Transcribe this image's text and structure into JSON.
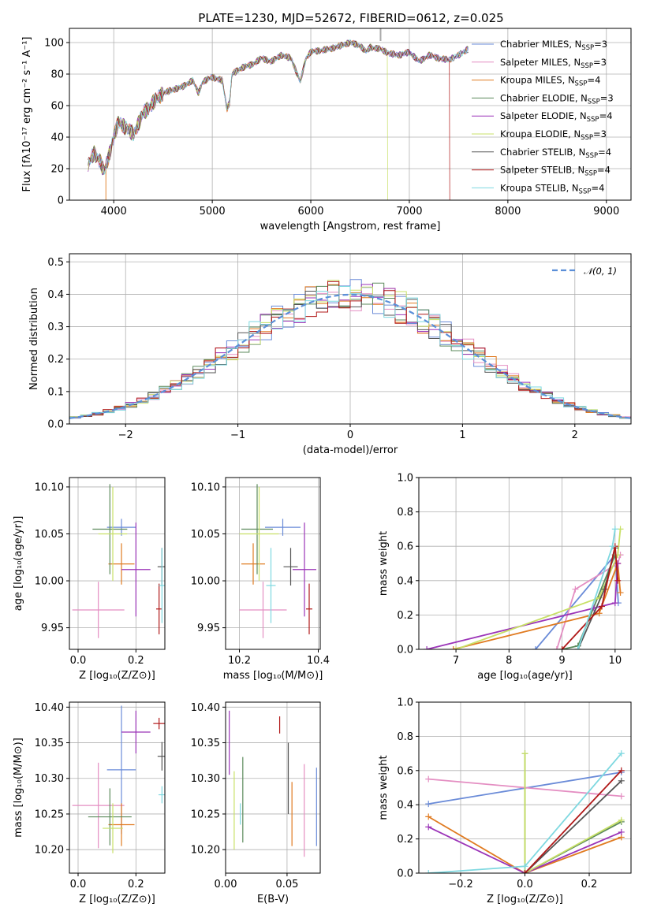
{
  "colors": [
    "#6a8bd8",
    "#e48ec2",
    "#e07b21",
    "#5b8a5b",
    "#9b34b8",
    "#c8e067",
    "#555555",
    "#b01818",
    "#7ed8e0"
  ],
  "chart_data": [
    {
      "id": "spectrum",
      "type": "line",
      "title": "PLATE=1230, MJD=52672, FIBERID=0612, z=0.025",
      "xlabel": "wavelength [Angstrom, rest frame]",
      "ylabel": "Flux [fλ10⁻¹⁷ erg cm⁻² s⁻¹ A⁻¹]",
      "xlim": [
        3550,
        9250
      ],
      "ylim": [
        0,
        109
      ],
      "xticks": [
        4000,
        5000,
        6000,
        7000,
        8000,
        9000
      ],
      "yticks": [
        0,
        20,
        40,
        60,
        80,
        100
      ],
      "spectrum_x": [
        3740,
        3800,
        3860,
        3900,
        3950,
        4000,
        4050,
        4100,
        4200,
        4300,
        4400,
        4500,
        4600,
        4700,
        4800,
        4860,
        4900,
        5000,
        5100,
        5150,
        5175,
        5200,
        5300,
        5400,
        5500,
        5600,
        5700,
        5800,
        5893,
        5950,
        6000,
        6100,
        6200,
        6300,
        6400,
        6500,
        6563,
        6600,
        6700,
        6800,
        6900,
        7000,
        7100,
        7200,
        7300,
        7400,
        7500,
        7600
      ],
      "spectrum_y": [
        22,
        30,
        25,
        18,
        28,
        40,
        50,
        47,
        42,
        55,
        62,
        68,
        70,
        72,
        76,
        68,
        75,
        78,
        76,
        58,
        62,
        80,
        84,
        86,
        90,
        88,
        92,
        90,
        75,
        90,
        94,
        95,
        96,
        98,
        100,
        98,
        94,
        97,
        96,
        93,
        92,
        94,
        88,
        92,
        90,
        89,
        92,
        96
      ],
      "dropouts": [
        {
          "series": 5,
          "x": 6780
        },
        {
          "series": 7,
          "x": 7410
        },
        {
          "series": 2,
          "x": 3920
        }
      ],
      "legend_position": "right",
      "series": [
        {
          "name": "Chabrier MILES, N",
          "sub": "SSP",
          "tail": "=3"
        },
        {
          "name": "Salpeter MILES, N",
          "sub": "SSP",
          "tail": "=3"
        },
        {
          "name": "Kroupa MILES, N",
          "sub": "SSP",
          "tail": "=4"
        },
        {
          "name": "Chabrier ELODIE, N",
          "sub": "SSP",
          "tail": "=3"
        },
        {
          "name": "Salpeter ELODIE, N",
          "sub": "SSP",
          "tail": "=4"
        },
        {
          "name": "Kroupa ELODIE, N",
          "sub": "SSP",
          "tail": "=3"
        },
        {
          "name": "Chabrier STELIB, N",
          "sub": "SSP",
          "tail": "=4"
        },
        {
          "name": "Salpeter STELIB, N",
          "sub": "SSP",
          "tail": "=4"
        },
        {
          "name": "Kroupa STELIB, N",
          "sub": "SSP",
          "tail": "=4"
        }
      ]
    },
    {
      "id": "residuals",
      "type": "histogram",
      "xlabel": "(data-model)/error",
      "ylabel": "Normed distribution",
      "xlim": [
        -2.5,
        2.5
      ],
      "ylim": [
        0,
        0.525
      ],
      "xticks": [
        -2,
        -1,
        0,
        1,
        2
      ],
      "yticks": [
        0.0,
        0.1,
        0.2,
        0.3,
        0.4,
        0.5
      ],
      "bin_width": 0.1,
      "legend": "𝒩(0, 1)",
      "legend_position": "top-right"
    },
    {
      "id": "age_vs_Z",
      "type": "errorbar",
      "xlabel": "Z [log₁₀(Z/Z⊙)]",
      "ylabel": "age  [log₁₀(age/yr)]",
      "xlim": [
        -0.03,
        0.3
      ],
      "ylim": [
        9.927,
        10.11
      ],
      "xticks": [
        0.0,
        0.2
      ],
      "yticks": [
        9.95,
        10.0,
        10.05,
        10.1
      ],
      "points": [
        {
          "x": 0.15,
          "y": 10.057,
          "xerr": 0.05,
          "yerr": 0.009
        },
        {
          "x": 0.07,
          "y": 9.969,
          "xerr": 0.09,
          "yerr": 0.03
        },
        {
          "x": 0.15,
          "y": 10.018,
          "xerr": 0.045,
          "yerr": 0.022
        },
        {
          "x": 0.11,
          "y": 10.055,
          "xerr": 0.06,
          "yerr": 0.048
        },
        {
          "x": 0.2,
          "y": 10.012,
          "xerr": 0.05,
          "yerr": 0.05
        },
        {
          "x": 0.12,
          "y": 10.05,
          "xerr": 0.05,
          "yerr": 0.05
        },
        {
          "x": 0.29,
          "y": 10.015,
          "xerr": 0.015,
          "yerr": 0.02
        },
        {
          "x": 0.28,
          "y": 9.97,
          "xerr": 0.01,
          "yerr": 0.027
        },
        {
          "x": 0.29,
          "y": 9.995,
          "xerr": 0.01,
          "yerr": 0.04
        }
      ]
    },
    {
      "id": "age_vs_mass",
      "type": "errorbar",
      "xlabel": "mass [log₁₀(M/M⊙)]",
      "ylabel": "",
      "xlim": [
        10.165,
        10.405
      ],
      "ylim": [
        9.927,
        10.11
      ],
      "xticks": [
        10.2,
        10.4
      ],
      "yticks": [
        9.95,
        10.0,
        10.05,
        10.1
      ],
      "points": [
        {
          "x": 10.31,
          "y": 10.057,
          "xerr": 0.045,
          "yerr": 0.009
        },
        {
          "x": 10.26,
          "y": 9.969,
          "xerr": 0.06,
          "yerr": 0.03
        },
        {
          "x": 10.235,
          "y": 10.018,
          "xerr": 0.03,
          "yerr": 0.022
        },
        {
          "x": 10.245,
          "y": 10.055,
          "xerr": 0.04,
          "yerr": 0.048
        },
        {
          "x": 10.365,
          "y": 10.012,
          "xerr": 0.03,
          "yerr": 0.05
        },
        {
          "x": 10.25,
          "y": 10.05,
          "xerr": 0.05,
          "yerr": 0.05
        },
        {
          "x": 10.33,
          "y": 10.015,
          "xerr": 0.018,
          "yerr": 0.02
        },
        {
          "x": 10.377,
          "y": 9.97,
          "xerr": 0.008,
          "yerr": 0.027
        },
        {
          "x": 10.28,
          "y": 9.995,
          "xerr": 0.012,
          "yerr": 0.04
        }
      ]
    },
    {
      "id": "weight_vs_age",
      "type": "line",
      "xlabel": "age  [log₁₀(age/yr)]",
      "ylabel": "mass weight",
      "xlim": [
        6.3,
        10.3
      ],
      "ylim": [
        0,
        1
      ],
      "xticks": [
        7,
        8,
        9,
        10
      ],
      "yticks": [
        0.0,
        0.2,
        0.4,
        0.6,
        0.8,
        1.0
      ],
      "series": [
        {
          "x": [
            8.5,
            10.0,
            10.06
          ],
          "y": [
            0.0,
            0.55,
            0.27
          ]
        },
        {
          "x": [
            8.9,
            9.25,
            10.05,
            10.1
          ],
          "y": [
            0.0,
            0.35,
            0.5,
            0.55
          ]
        },
        {
          "x": [
            6.95,
            9.7,
            10.05,
            10.1
          ],
          "y": [
            0.0,
            0.21,
            0.5,
            0.33
          ]
        },
        {
          "x": [
            9.0,
            9.3,
            10.0
          ],
          "y": [
            0.0,
            0.02,
            0.55
          ]
        },
        {
          "x": [
            6.45,
            9.6,
            10.0,
            10.05
          ],
          "y": [
            0.0,
            0.24,
            0.27,
            0.5
          ]
        },
        {
          "x": [
            7.0,
            9.7,
            10.05,
            10.1
          ],
          "y": [
            0.0,
            0.3,
            0.55,
            0.7
          ]
        },
        {
          "x": [
            9.3,
            9.8,
            10.0
          ],
          "y": [
            0.0,
            0.35,
            0.59
          ]
        },
        {
          "x": [
            9.0,
            9.75,
            10.0,
            10.05
          ],
          "y": [
            0.0,
            0.25,
            0.6,
            0.4
          ]
        },
        {
          "x": [
            9.3,
            9.95,
            10.0
          ],
          "y": [
            0.0,
            0.6,
            0.7
          ]
        }
      ]
    },
    {
      "id": "mass_vs_Z",
      "type": "errorbar",
      "xlabel": "Z [log₁₀(Z/Z⊙)]",
      "ylabel": "mass [log₁₀(M/M⊙)]",
      "xlim": [
        -0.03,
        0.3
      ],
      "ylim": [
        10.167,
        10.407
      ],
      "xticks": [
        0.0,
        0.2
      ],
      "yticks": [
        10.2,
        10.25,
        10.3,
        10.35,
        10.4
      ],
      "points": [
        {
          "x": 0.15,
          "y": 10.312,
          "xerr": 0.05,
          "yerr": 0.09
        },
        {
          "x": 0.07,
          "y": 10.262,
          "xerr": 0.09,
          "yerr": 0.06
        },
        {
          "x": 0.15,
          "y": 10.235,
          "xerr": 0.045,
          "yerr": 0.03
        },
        {
          "x": 0.11,
          "y": 10.246,
          "xerr": 0.075,
          "yerr": 0.04
        },
        {
          "x": 0.2,
          "y": 10.365,
          "xerr": 0.05,
          "yerr": 0.03
        },
        {
          "x": 0.12,
          "y": 10.23,
          "xerr": 0.035,
          "yerr": 0.035
        },
        {
          "x": 0.29,
          "y": 10.331,
          "xerr": 0.015,
          "yerr": 0.02
        },
        {
          "x": 0.28,
          "y": 10.377,
          "xerr": 0.02,
          "yerr": 0.008
        },
        {
          "x": 0.29,
          "y": 10.277,
          "xerr": 0.012,
          "yerr": 0.012
        }
      ]
    },
    {
      "id": "mass_vs_ebv",
      "type": "errorbar",
      "xlabel": "E(B-V)",
      "ylabel": "",
      "xlim": [
        0.0,
        0.077
      ],
      "ylim": [
        10.167,
        10.407
      ],
      "xticks": [
        0.0,
        0.05
      ],
      "yticks": [
        10.2,
        10.25,
        10.3,
        10.35,
        10.4
      ],
      "points": [
        {
          "x": 0.074,
          "y": 10.26,
          "xerr": 0.0,
          "yerr": 0.055
        },
        {
          "x": 0.064,
          "y": 10.255,
          "xerr": 0.0,
          "yerr": 0.065
        },
        {
          "x": 0.054,
          "y": 10.25,
          "xerr": 0.0,
          "yerr": 0.045
        },
        {
          "x": 0.014,
          "y": 10.27,
          "xerr": 0.0,
          "yerr": 0.06
        },
        {
          "x": 0.003,
          "y": 10.35,
          "xerr": 0.0,
          "yerr": 0.045
        },
        {
          "x": 0.007,
          "y": 10.255,
          "xerr": 0.0,
          "yerr": 0.055
        },
        {
          "x": 0.051,
          "y": 10.3,
          "xerr": 0.0,
          "yerr": 0.05
        },
        {
          "x": 0.044,
          "y": 10.375,
          "xerr": 0.0,
          "yerr": 0.012
        },
        {
          "x": 0.012,
          "y": 10.25,
          "xerr": 0.0,
          "yerr": 0.015
        }
      ]
    },
    {
      "id": "weight_vs_Z",
      "type": "line",
      "xlabel": "Z [log₁₀(Z/Z⊙)]",
      "ylabel": "mass weight",
      "xlim": [
        -0.33,
        0.33
      ],
      "ylim": [
        0,
        1
      ],
      "xticks": [
        -0.2,
        0.0,
        0.2
      ],
      "yticks": [
        0.0,
        0.2,
        0.4,
        0.6,
        0.8,
        1.0
      ],
      "series": [
        {
          "x": [
            -0.3,
            0.3
          ],
          "y": [
            0.405,
            0.59
          ]
        },
        {
          "x": [
            -0.3,
            0.0,
            0.3
          ],
          "y": [
            0.55,
            0.5,
            0.45
          ]
        },
        {
          "x": [
            -0.3,
            0.0,
            0.3
          ],
          "y": [
            0.33,
            0.0,
            0.21
          ]
        },
        {
          "x": [
            0.0,
            0.0,
            0.3
          ],
          "y": [
            0.7,
            0.0,
            0.3
          ]
        },
        {
          "x": [
            -0.3,
            0.0,
            0.3
          ],
          "y": [
            0.27,
            0.0,
            0.24
          ]
        },
        {
          "x": [
            0.0,
            0.0,
            0.3
          ],
          "y": [
            0.7,
            0.0,
            0.31
          ]
        },
        {
          "x": [
            0.0,
            0.3
          ],
          "y": [
            0.0,
            0.54
          ]
        },
        {
          "x": [
            0.0,
            0.3
          ],
          "y": [
            0.0,
            0.6
          ]
        },
        {
          "x": [
            -0.3,
            0.0,
            0.3
          ],
          "y": [
            0.0,
            0.04,
            0.7
          ]
        }
      ]
    }
  ]
}
